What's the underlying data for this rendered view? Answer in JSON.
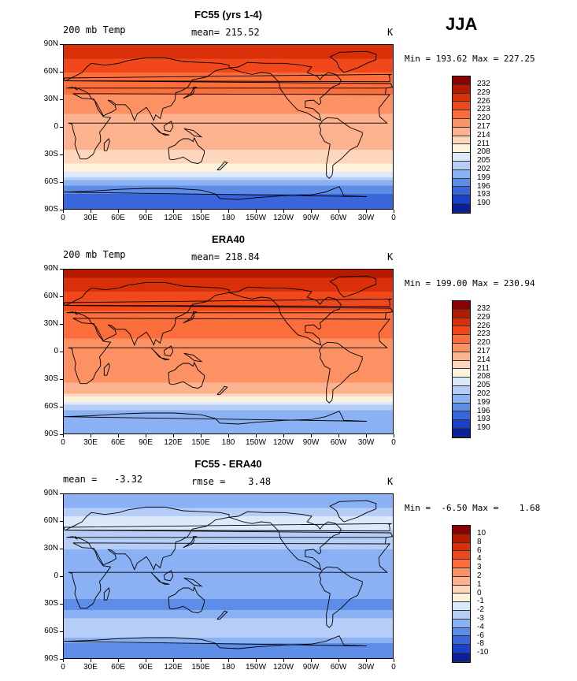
{
  "season": "JJA",
  "axes": {
    "y_ticks": [
      "90N",
      "60N",
      "30N",
      "0",
      "30S",
      "60S",
      "90S"
    ],
    "x_ticks": [
      "0",
      "30E",
      "60E",
      "90E",
      "120E",
      "150E",
      "180",
      "150W",
      "120W",
      "90W",
      "60W",
      "30W",
      "0"
    ]
  },
  "chart_data": [
    {
      "type": "heatmap",
      "title": "FC55 (yrs 1-4)",
      "left_label": "200 mb Temp",
      "center_label": "mean= 215.52",
      "units": "K",
      "min_max": "Min = 193.62 Max = 227.25",
      "levels": [
        "232",
        "229",
        "226",
        "223",
        "220",
        "217",
        "214",
        "211",
        "208",
        "205",
        "202",
        "199",
        "196",
        "193",
        "190"
      ],
      "zonal_mean_profile_K": [
        [
          90,
          227
        ],
        [
          75,
          226
        ],
        [
          60,
          223
        ],
        [
          45,
          221
        ],
        [
          30,
          219
        ],
        [
          15,
          217
        ],
        [
          0,
          216
        ],
        [
          -15,
          215
        ],
        [
          -30,
          213
        ],
        [
          -45,
          209
        ],
        [
          -55,
          204
        ],
        [
          -65,
          198
        ],
        [
          -75,
          195
        ],
        [
          -90,
          194
        ]
      ]
    },
    {
      "type": "heatmap",
      "title": "ERA40",
      "left_label": "200 mb Temp",
      "center_label": "mean= 218.84",
      "units": "K",
      "min_max": "Min = 199.00 Max = 230.94",
      "levels": [
        "232",
        "229",
        "226",
        "223",
        "220",
        "217",
        "214",
        "211",
        "208",
        "205",
        "202",
        "199",
        "196",
        "193",
        "190"
      ],
      "zonal_mean_profile_K": [
        [
          90,
          230
        ],
        [
          75,
          228
        ],
        [
          60,
          225
        ],
        [
          45,
          223
        ],
        [
          30,
          222
        ],
        [
          15,
          220
        ],
        [
          0,
          219
        ],
        [
          -15,
          219
        ],
        [
          -30,
          218
        ],
        [
          -45,
          214
        ],
        [
          -55,
          206
        ],
        [
          -65,
          201
        ],
        [
          -75,
          200
        ],
        [
          -90,
          199
        ]
      ]
    },
    {
      "type": "heatmap",
      "title": "FC55 - ERA40",
      "left_label": "mean =   -3.32",
      "center_label": "rmse =    3.48",
      "units": "K",
      "min_max": "Min =  -6.50 Max =    1.68",
      "levels": [
        "10",
        "8",
        "6",
        "4",
        "3",
        "2",
        "1",
        "0",
        "-1",
        "-2",
        "-3",
        "-4",
        "-6",
        "-8",
        "-10"
      ],
      "zonal_mean_profile_K": [
        [
          90,
          -4
        ],
        [
          75,
          -3
        ],
        [
          60,
          -1.5
        ],
        [
          45,
          -2.5
        ],
        [
          30,
          -3
        ],
        [
          15,
          -3.5
        ],
        [
          0,
          -3
        ],
        [
          -15,
          -3.5
        ],
        [
          -30,
          -4.5
        ],
        [
          -45,
          -3
        ],
        [
          -55,
          -2.5
        ],
        [
          -65,
          -3
        ],
        [
          -75,
          -4.5
        ],
        [
          -90,
          -5
        ]
      ]
    }
  ],
  "colors": {
    "temp_scale": [
      "#8b0000",
      "#b41a00",
      "#d9300a",
      "#f0481a",
      "#fb6d3a",
      "#fc9164",
      "#fdb28f",
      "#fdd6bc",
      "#fdf2dc",
      "#dce9fb",
      "#b6cdf8",
      "#8ab1f3",
      "#5e8de8",
      "#3a66dc",
      "#1840c8",
      "#0a1f9c"
    ],
    "diff_scale": [
      "#8b0000",
      "#b41a00",
      "#d9300a",
      "#f0481a",
      "#fb6d3a",
      "#fc9164",
      "#fdb28f",
      "#fdd6bc",
      "#fdf2dc",
      "#dce9fb",
      "#b6cdf8",
      "#8ab1f3",
      "#5e8de8",
      "#3a66dc",
      "#1840c8",
      "#0a1f9c"
    ],
    "coastline": "#000000"
  }
}
